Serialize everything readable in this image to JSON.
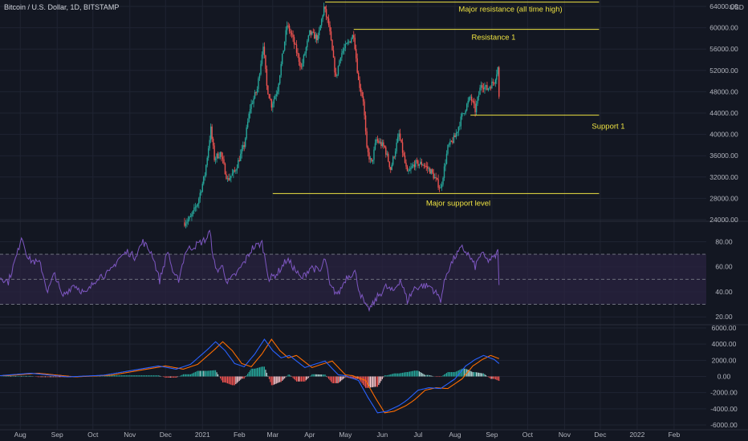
{
  "header": {
    "title": "Bitcoin / U.S. Dollar, 1D, BITSTAMP",
    "currency": "USD"
  },
  "colors": {
    "background": "#131722",
    "grid": "#1f2432",
    "up": "#26a69a",
    "down": "#ef5350",
    "annotation_line": "#f0e442",
    "rsi": "#7e57c2",
    "rsi_band": "#2a2340",
    "macd": "#2962ff",
    "signal": "#ff6d00",
    "text": "#b2b5be"
  },
  "x_axis": {
    "start": "2020-07-15",
    "end": "2022-02-28",
    "months": [
      {
        "label": "Aug",
        "date": "2020-08-01"
      },
      {
        "label": "Sep",
        "date": "2020-09-01"
      },
      {
        "label": "Oct",
        "date": "2020-10-01"
      },
      {
        "label": "Nov",
        "date": "2020-11-01"
      },
      {
        "label": "Dec",
        "date": "2020-12-01"
      },
      {
        "label": "2021",
        "date": "2021-01-01"
      },
      {
        "label": "Feb",
        "date": "2021-02-01"
      },
      {
        "label": "Mar",
        "date": "2021-03-01"
      },
      {
        "label": "Apr",
        "date": "2021-04-01"
      },
      {
        "label": "May",
        "date": "2021-05-01"
      },
      {
        "label": "Jun",
        "date": "2021-06-01"
      },
      {
        "label": "Jul",
        "date": "2021-07-01"
      },
      {
        "label": "Aug",
        "date": "2021-08-01"
      },
      {
        "label": "Sep",
        "date": "2021-09-01"
      },
      {
        "label": "Oct",
        "date": "2021-10-01"
      },
      {
        "label": "Nov",
        "date": "2021-11-01"
      },
      {
        "label": "Dec",
        "date": "2021-12-01"
      },
      {
        "label": "2022",
        "date": "2022-01-01"
      },
      {
        "label": "Feb",
        "date": "2022-02-01"
      }
    ]
  },
  "chart_data": [
    {
      "type": "candlestick",
      "name": "price",
      "ylim": [
        24000,
        64000
      ],
      "y_ticks": [
        "64000.00",
        "60000.00",
        "56000.00",
        "52000.00",
        "48000.00",
        "44000.00",
        "40000.00",
        "36000.00",
        "32000.00",
        "28000.00",
        "24000.00"
      ],
      "y_tick_values": [
        64000,
        60000,
        56000,
        52000,
        48000,
        44000,
        40000,
        36000,
        32000,
        28000,
        24000
      ],
      "path": [
        [
          "2020-12-17",
          23500
        ],
        [
          "2020-12-22",
          24300
        ],
        [
          "2020-12-28",
          27200
        ],
        [
          "2021-01-03",
          32500
        ],
        [
          "2021-01-08",
          41000
        ],
        [
          "2021-01-11",
          35500
        ],
        [
          "2021-01-16",
          36500
        ],
        [
          "2021-01-22",
          31500
        ],
        [
          "2021-01-28",
          33000
        ],
        [
          "2021-02-05",
          38000
        ],
        [
          "2021-02-10",
          45000
        ],
        [
          "2021-02-16",
          48500
        ],
        [
          "2021-02-21",
          57000
        ],
        [
          "2021-02-24",
          49000
        ],
        [
          "2021-02-28",
          45500
        ],
        [
          "2021-03-05",
          48500
        ],
        [
          "2021-03-13",
          60500
        ],
        [
          "2021-03-17",
          58500
        ],
        [
          "2021-03-25",
          52500
        ],
        [
          "2021-04-01",
          59000
        ],
        [
          "2021-04-08",
          58000
        ],
        [
          "2021-04-13",
          63800
        ],
        [
          "2021-04-17",
          60500
        ],
        [
          "2021-04-23",
          50500
        ],
        [
          "2021-04-27",
          55000
        ],
        [
          "2021-05-03",
          57000
        ],
        [
          "2021-05-08",
          58800
        ],
        [
          "2021-05-12",
          50000
        ],
        [
          "2021-05-16",
          46500
        ],
        [
          "2021-05-19",
          37000
        ],
        [
          "2021-05-23",
          34500
        ],
        [
          "2021-05-27",
          39000
        ],
        [
          "2021-06-03",
          37500
        ],
        [
          "2021-06-08",
          33500
        ],
        [
          "2021-06-15",
          40000
        ],
        [
          "2021-06-22",
          32500
        ],
        [
          "2021-06-28",
          34500
        ],
        [
          "2021-07-05",
          34500
        ],
        [
          "2021-07-12",
          33000
        ],
        [
          "2021-07-20",
          29800
        ],
        [
          "2021-07-26",
          37500
        ],
        [
          "2021-08-01",
          39500
        ],
        [
          "2021-08-07",
          43500
        ],
        [
          "2021-08-14",
          47000
        ],
        [
          "2021-08-18",
          44500
        ],
        [
          "2021-08-23",
          49500
        ],
        [
          "2021-08-28",
          48500
        ],
        [
          "2021-09-03",
          50000
        ],
        [
          "2021-09-06",
          52500
        ],
        [
          "2021-09-07",
          46800
        ]
      ],
      "volatility": 1300,
      "annotations": [
        {
          "label": "Major resistance (all time high)",
          "value": 64800,
          "from": "2021-04-14",
          "to": "2021-11-30"
        },
        {
          "label": "Resistance 1",
          "value": 59700,
          "from": "2021-05-08",
          "to": "2021-11-30"
        },
        {
          "label": "Support 1",
          "value": 43600,
          "from": "2021-08-14",
          "to": "2021-11-30"
        },
        {
          "label": "Major support level",
          "value": 28900,
          "from": "2021-03-01",
          "to": "2021-11-30"
        }
      ]
    },
    {
      "type": "line",
      "name": "RSI",
      "ylim": [
        15,
        95
      ],
      "y_ticks": [
        "80.00",
        "60.00",
        "40.00",
        "20.00"
      ],
      "y_tick_values": [
        80,
        60,
        40,
        20
      ],
      "band": [
        30,
        70
      ],
      "mid": 50,
      "path": [
        [
          "2020-07-15",
          52
        ],
        [
          "2020-07-22",
          48
        ],
        [
          "2020-07-30",
          72
        ],
        [
          "2020-08-02",
          85
        ],
        [
          "2020-08-08",
          66
        ],
        [
          "2020-08-18",
          62
        ],
        [
          "2020-08-24",
          40
        ],
        [
          "2020-08-30",
          55
        ],
        [
          "2020-09-05",
          36
        ],
        [
          "2020-09-15",
          46
        ],
        [
          "2020-09-25",
          38
        ],
        [
          "2020-10-05",
          52
        ],
        [
          "2020-10-15",
          55
        ],
        [
          "2020-10-22",
          66
        ],
        [
          "2020-10-30",
          72
        ],
        [
          "2020-11-05",
          68
        ],
        [
          "2020-11-12",
          80
        ],
        [
          "2020-11-20",
          70
        ],
        [
          "2020-11-26",
          49
        ],
        [
          "2020-12-03",
          73
        ],
        [
          "2020-12-08",
          52
        ],
        [
          "2020-12-12",
          50
        ],
        [
          "2020-12-18",
          73
        ],
        [
          "2020-12-28",
          78
        ],
        [
          "2021-01-04",
          82
        ],
        [
          "2021-01-07",
          88
        ],
        [
          "2021-01-12",
          57
        ],
        [
          "2021-01-18",
          60
        ],
        [
          "2021-01-22",
          47
        ],
        [
          "2021-01-30",
          55
        ],
        [
          "2021-02-06",
          65
        ],
        [
          "2021-02-12",
          75
        ],
        [
          "2021-02-20",
          79
        ],
        [
          "2021-02-26",
          50
        ],
        [
          "2021-03-05",
          55
        ],
        [
          "2021-03-13",
          66
        ],
        [
          "2021-03-18",
          60
        ],
        [
          "2021-03-25",
          50
        ],
        [
          "2021-04-02",
          60
        ],
        [
          "2021-04-10",
          56
        ],
        [
          "2021-04-14",
          67
        ],
        [
          "2021-04-18",
          44
        ],
        [
          "2021-04-25",
          38
        ],
        [
          "2021-05-02",
          52
        ],
        [
          "2021-05-09",
          56
        ],
        [
          "2021-05-13",
          40
        ],
        [
          "2021-05-19",
          26
        ],
        [
          "2021-05-23",
          28
        ],
        [
          "2021-05-28",
          36
        ],
        [
          "2021-06-04",
          44
        ],
        [
          "2021-06-10",
          40
        ],
        [
          "2021-06-16",
          50
        ],
        [
          "2021-06-22",
          33
        ],
        [
          "2021-06-28",
          43
        ],
        [
          "2021-07-05",
          45
        ],
        [
          "2021-07-12",
          44
        ],
        [
          "2021-07-20",
          34
        ],
        [
          "2021-07-25",
          55
        ],
        [
          "2021-08-01",
          68
        ],
        [
          "2021-08-07",
          75
        ],
        [
          "2021-08-12",
          70
        ],
        [
          "2021-08-18",
          60
        ],
        [
          "2021-08-23",
          71
        ],
        [
          "2021-08-28",
          65
        ],
        [
          "2021-09-03",
          67
        ],
        [
          "2021-09-06",
          72
        ],
        [
          "2021-09-07",
          48
        ]
      ],
      "volatility": 3
    },
    {
      "type": "line",
      "name": "MACD",
      "ylim": [
        -6200,
        6200
      ],
      "y_ticks": [
        "6000.00",
        "4000.00",
        "2000.00",
        "0.00",
        "-2000.00",
        "-4000.00",
        "-6000.00"
      ],
      "y_tick_values": [
        6000,
        4000,
        2000,
        0,
        -2000,
        -4000,
        -6000
      ],
      "path": [
        [
          "2020-07-15",
          100
        ],
        [
          "2020-08-10",
          400
        ],
        [
          "2020-09-10",
          -50
        ],
        [
          "2020-10-10",
          150
        ],
        [
          "2020-11-05",
          800
        ],
        [
          "2020-11-25",
          1300
        ],
        [
          "2020-12-10",
          900
        ],
        [
          "2020-12-22",
          1500
        ],
        [
          "2021-01-05",
          3300
        ],
        [
          "2021-01-12",
          4300
        ],
        [
          "2021-01-20",
          3200
        ],
        [
          "2021-01-28",
          1600
        ],
        [
          "2021-02-05",
          1200
        ],
        [
          "2021-02-14",
          2800
        ],
        [
          "2021-02-22",
          4600
        ],
        [
          "2021-03-01",
          3200
        ],
        [
          "2021-03-08",
          2300
        ],
        [
          "2021-03-15",
          2600
        ],
        [
          "2021-03-28",
          1100
        ],
        [
          "2021-04-05",
          1500
        ],
        [
          "2021-04-14",
          1900
        ],
        [
          "2021-04-25",
          200
        ],
        [
          "2021-05-01",
          100
        ],
        [
          "2021-05-12",
          -500
        ],
        [
          "2021-05-20",
          -2600
        ],
        [
          "2021-05-28",
          -4500
        ],
        [
          "2021-06-05",
          -4300
        ],
        [
          "2021-06-15",
          -3600
        ],
        [
          "2021-06-22",
          -2900
        ],
        [
          "2021-07-01",
          -1700
        ],
        [
          "2021-07-10",
          -1400
        ],
        [
          "2021-07-20",
          -1500
        ],
        [
          "2021-08-01",
          -300
        ],
        [
          "2021-08-10",
          1300
        ],
        [
          "2021-08-18",
          2100
        ],
        [
          "2021-08-25",
          2600
        ],
        [
          "2021-09-03",
          2100
        ],
        [
          "2021-09-07",
          1600
        ]
      ],
      "signal_lag_days": 6
    }
  ]
}
